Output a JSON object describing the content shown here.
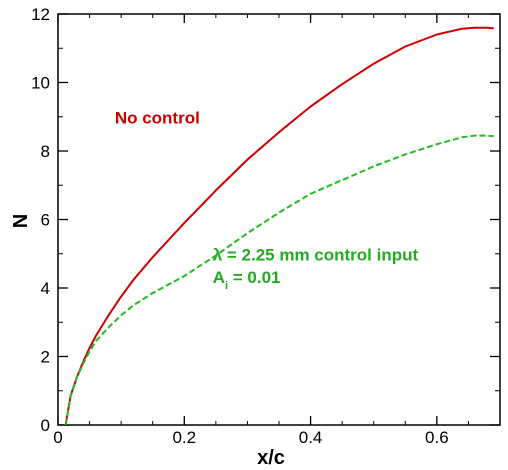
{
  "chart_data": {
    "type": "line",
    "xlabel": "x/c",
    "ylabel": "N",
    "xlim": [
      0,
      0.7
    ],
    "ylim": [
      0,
      12
    ],
    "xticks": [
      {
        "value": 0,
        "label": "0"
      },
      {
        "value": 0.2,
        "label": "0.2"
      },
      {
        "value": 0.4,
        "label": "0.4"
      },
      {
        "value": 0.6,
        "label": "0.6"
      }
    ],
    "yticks": [
      {
        "value": 0,
        "label": "0"
      },
      {
        "value": 2,
        "label": "2"
      },
      {
        "value": 4,
        "label": "4"
      },
      {
        "value": 6,
        "label": "6"
      },
      {
        "value": 8,
        "label": "8"
      },
      {
        "value": 10,
        "label": "10"
      },
      {
        "value": 12,
        "label": "12"
      }
    ],
    "x_minor_step": 0.05,
    "y_minor_step": 1,
    "grid": false,
    "series": [
      {
        "name": "No control",
        "color": "#cc0000",
        "dash": "solid",
        "x": [
          0.012,
          0.02,
          0.03,
          0.04,
          0.05,
          0.06,
          0.08,
          0.1,
          0.12,
          0.15,
          0.2,
          0.25,
          0.3,
          0.35,
          0.4,
          0.45,
          0.5,
          0.55,
          0.6,
          0.64,
          0.66,
          0.68,
          0.69
        ],
        "y": [
          0.0,
          0.85,
          1.4,
          1.85,
          2.25,
          2.6,
          3.2,
          3.75,
          4.25,
          4.9,
          5.9,
          6.85,
          7.75,
          8.55,
          9.3,
          9.95,
          10.55,
          11.05,
          11.4,
          11.57,
          11.6,
          11.6,
          11.58
        ]
      },
      {
        "name": "λ = 2.25 mm control input",
        "color": "#22bb22",
        "dash": "dashed",
        "x": [
          0.012,
          0.02,
          0.03,
          0.04,
          0.05,
          0.06,
          0.08,
          0.1,
          0.12,
          0.15,
          0.2,
          0.25,
          0.3,
          0.35,
          0.4,
          0.45,
          0.5,
          0.55,
          0.6,
          0.64,
          0.66,
          0.68,
          0.69
        ],
        "y": [
          0.0,
          0.85,
          1.4,
          1.8,
          2.15,
          2.45,
          2.85,
          3.2,
          3.5,
          3.85,
          4.35,
          4.95,
          5.6,
          6.2,
          6.75,
          7.15,
          7.55,
          7.9,
          8.2,
          8.4,
          8.45,
          8.45,
          8.43
        ]
      }
    ],
    "annotations": [
      {
        "text": "No control",
        "color": "#cc0000",
        "x": 0.09,
        "y": 8.8
      },
      {
        "text": "λ = 2.25 mm control input",
        "color": "#22aa22",
        "x": 0.245,
        "y": 4.8
      },
      {
        "text": "A",
        "sub": "i",
        "rest": " = 0.01",
        "color": "#22aa22",
        "x": 0.245,
        "y": 4.15
      }
    ]
  }
}
